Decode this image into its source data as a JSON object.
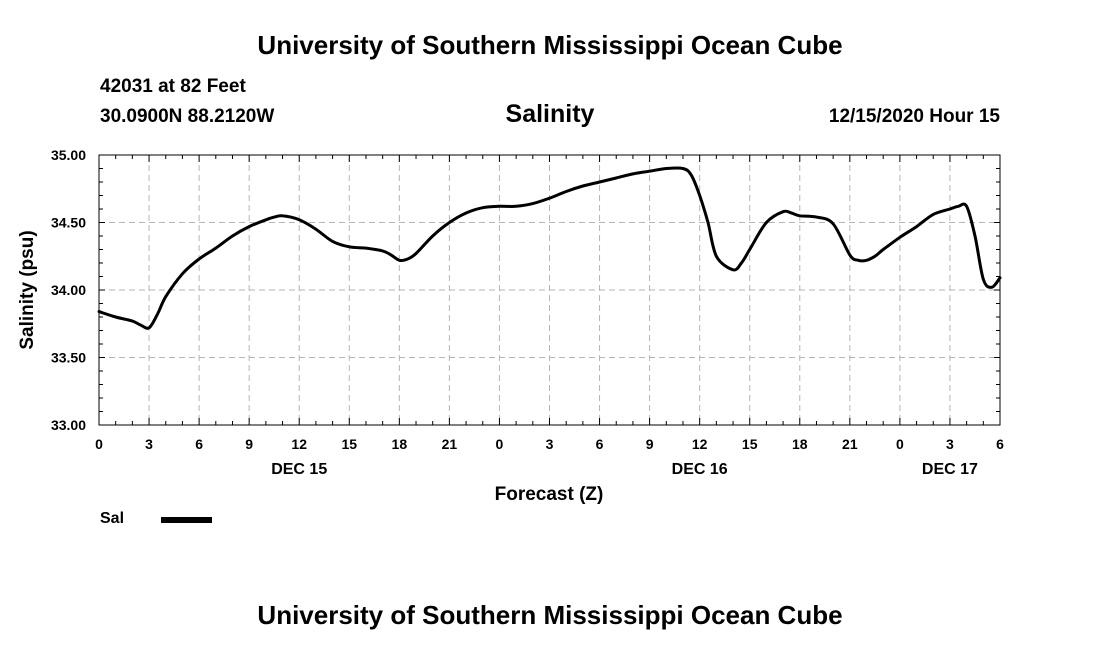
{
  "header": {
    "title": "University of Southern Mississippi Ocean Cube",
    "station": "42031 at 82 Feet",
    "coords": "30.0900N 88.2120W",
    "chart_title": "Salinity",
    "date": "12/15/2020 Hour 15"
  },
  "footer": {
    "title": "University of Southern Mississippi Ocean Cube"
  },
  "legend": {
    "label": "Sal",
    "color": "#000000"
  },
  "chart_data": {
    "type": "line",
    "title": "Salinity",
    "xlabel": "Forecast (Z)",
    "ylabel": "Salinity (psu)",
    "ylim": [
      33.0,
      35.0
    ],
    "xlim": [
      0,
      54
    ],
    "grid": true,
    "yticks": [
      33.0,
      33.5,
      34.0,
      34.5,
      35.0
    ],
    "ytick_labels": [
      "33.00",
      "33.50",
      "34.00",
      "34.50",
      "35.00"
    ],
    "xticks": [
      0,
      3,
      6,
      9,
      12,
      15,
      18,
      21,
      24,
      27,
      30,
      33,
      36,
      39,
      42,
      45,
      48,
      51,
      54
    ],
    "xtick_labels": [
      "0",
      "3",
      "6",
      "9",
      "12",
      "15",
      "18",
      "21",
      "0",
      "3",
      "6",
      "9",
      "12",
      "15",
      "18",
      "21",
      "0",
      "3",
      "6"
    ],
    "day_labels": [
      {
        "x": 12,
        "label": "DEC 15"
      },
      {
        "x": 36,
        "label": "DEC 16"
      },
      {
        "x": 51,
        "label": "DEC 17"
      }
    ],
    "series": [
      {
        "name": "Sal",
        "x": [
          0,
          1,
          2,
          2.5,
          3,
          3.5,
          4,
          5,
          6,
          7,
          8,
          9,
          10,
          10.5,
          11,
          12,
          13,
          14,
          15,
          16,
          17,
          17.5,
          18,
          18.5,
          19,
          20,
          21,
          22,
          23,
          24,
          25,
          26,
          27,
          28,
          29,
          30,
          31,
          32,
          33,
          34,
          35,
          35.5,
          36,
          36.5,
          37,
          38,
          38.5,
          39,
          40,
          41,
          41.5,
          42,
          43,
          44,
          45,
          45.5,
          46,
          46.5,
          47,
          48,
          49,
          50,
          51,
          51.5,
          52,
          52.5,
          53,
          53.5,
          54
        ],
        "values": [
          33.84,
          33.8,
          33.77,
          33.74,
          33.72,
          33.82,
          33.95,
          34.12,
          34.23,
          34.31,
          34.4,
          34.47,
          34.52,
          34.54,
          34.55,
          34.52,
          34.45,
          34.36,
          34.32,
          34.31,
          34.29,
          34.26,
          34.22,
          34.23,
          34.27,
          34.4,
          34.5,
          34.57,
          34.61,
          34.62,
          34.62,
          34.64,
          34.68,
          34.73,
          34.77,
          34.8,
          34.83,
          34.86,
          34.88,
          34.9,
          34.9,
          34.85,
          34.7,
          34.5,
          34.25,
          34.15,
          34.2,
          34.3,
          34.5,
          34.58,
          34.57,
          34.55,
          34.54,
          34.49,
          34.26,
          34.22,
          34.22,
          34.25,
          34.3,
          34.39,
          34.47,
          34.56,
          34.6,
          34.62,
          34.62,
          34.4,
          34.08,
          34.02,
          34.09
        ]
      }
    ]
  }
}
